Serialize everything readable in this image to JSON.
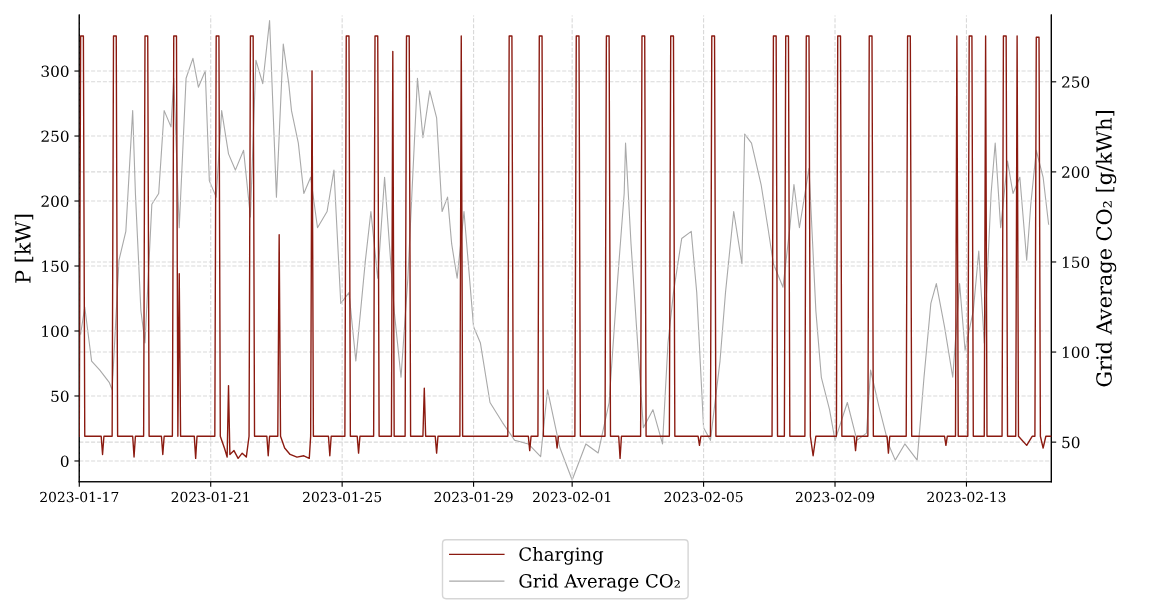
{
  "chart_data": {
    "type": "line",
    "ylabel": "P [kW]",
    "y2label": "Grid Average CO₂ [g/kWh]",
    "xlim": [
      "2023-01-17",
      "2023-02-15T14:00"
    ],
    "xticks": [
      "2023-01-17",
      "2023-01-21",
      "2023-01-25",
      "2023-01-29",
      "2023-02-01",
      "2023-02-05",
      "2023-02-09",
      "2023-02-13"
    ],
    "ylim": [
      -16,
      343
    ],
    "yticks": [
      0,
      50,
      100,
      150,
      200,
      250,
      300
    ],
    "y2lim": [
      28,
      287
    ],
    "y2ticks": [
      50,
      100,
      150,
      200,
      250
    ],
    "grid": true,
    "legend": "bottom",
    "line_style": "solid",
    "marker": "none",
    "series": [
      {
        "name": "Charging",
        "color": "#8b1a10",
        "x": [
          "2023-01-17T00:00",
          "2023-01-17T01:00",
          "2023-01-17T03:00",
          "2023-01-17T04:00",
          "2023-01-17T16:00",
          "2023-01-17T17:00",
          "2023-01-17T18:00",
          "2023-01-18T00:00",
          "2023-01-18T01:00",
          "2023-01-18T03:00",
          "2023-01-18T04:00",
          "2023-01-18T15:00",
          "2023-01-18T16:00",
          "2023-01-18T17:00",
          "2023-01-18T23:00",
          "2023-01-19T00:00",
          "2023-01-19T02:00",
          "2023-01-19T03:00",
          "2023-01-19T12:00",
          "2023-01-19T13:00",
          "2023-01-19T14:00",
          "2023-01-19T20:00",
          "2023-01-19T21:00",
          "2023-01-19T23:00",
          "2023-01-20T00:00",
          "2023-01-20T01:00",
          "2023-01-20T02:00",
          "2023-01-20T12:00",
          "2023-01-20T13:00",
          "2023-01-20T14:00",
          "2023-01-21T03:00",
          "2023-01-21T04:00",
          "2023-01-21T06:00",
          "2023-01-21T07:00",
          "2023-01-21T10:00",
          "2023-01-21T12:00",
          "2023-01-21T13:00",
          "2023-01-21T14:00",
          "2023-01-21T17:00",
          "2023-01-21T20:00",
          "2023-01-21T23:00",
          "2023-01-22T02:00",
          "2023-01-22T04:00",
          "2023-01-22T05:00",
          "2023-01-22T07:00",
          "2023-01-22T08:00",
          "2023-01-22T17:00",
          "2023-01-22T18:00",
          "2023-01-22T19:00",
          "2023-01-23T01:00",
          "2023-01-23T02:00",
          "2023-01-23T03:00",
          "2023-01-23T06:00",
          "2023-01-23T10:00",
          "2023-01-23T15:00",
          "2023-01-23T20:00",
          "2023-01-24T00:00",
          "2023-01-24T01:00",
          "2023-01-24T02:00",
          "2023-01-24T03:00",
          "2023-01-24T14:00",
          "2023-01-24T15:00",
          "2023-01-24T16:00",
          "2023-01-25T02:00",
          "2023-01-25T03:00",
          "2023-01-25T05:00",
          "2023-01-25T06:00",
          "2023-01-25T11:00",
          "2023-01-25T12:00",
          "2023-01-25T13:00",
          "2023-01-25T23:00",
          "2023-01-26T00:00",
          "2023-01-26T02:00",
          "2023-01-26T03:00",
          "2023-01-26T12:00",
          "2023-01-26T13:00",
          "2023-01-26T14:00",
          "2023-01-26T22:00",
          "2023-01-26T23:00",
          "2023-01-27T01:00",
          "2023-01-27T02:00",
          "2023-01-27T11:00",
          "2023-01-27T12:00",
          "2023-01-27T13:00",
          "2023-01-27T20:00",
          "2023-01-27T21:00",
          "2023-01-27T22:00",
          "2023-01-28T14:00",
          "2023-01-28T15:00",
          "2023-01-28T16:00",
          "2023-01-30T01:00",
          "2023-01-30T02:00",
          "2023-01-30T04:00",
          "2023-01-30T05:00",
          "2023-01-30T16:00",
          "2023-01-30T17:00",
          "2023-01-30T18:00",
          "2023-01-30T23:00",
          "2023-01-31T00:00",
          "2023-01-31T02:00",
          "2023-01-31T03:00",
          "2023-01-31T12:00",
          "2023-01-31T13:00",
          "2023-01-31T14:00",
          "2023-02-01T02:00",
          "2023-02-01T03:00",
          "2023-02-01T05:00",
          "2023-02-01T06:00",
          "2023-02-02T00:00",
          "2023-02-02T01:00",
          "2023-02-02T03:00",
          "2023-02-02T04:00",
          "2023-02-02T10:00",
          "2023-02-02T11:00",
          "2023-02-02T12:00",
          "2023-02-03T02:00",
          "2023-02-03T03:00",
          "2023-02-03T05:00",
          "2023-02-03T06:00",
          "2023-02-03T23:00",
          "2023-02-04T00:00",
          "2023-02-04T02:00",
          "2023-02-04T03:00",
          "2023-02-04T20:00",
          "2023-02-04T21:00",
          "2023-02-04T22:00",
          "2023-02-05T05:00",
          "2023-02-05T06:00",
          "2023-02-05T08:00",
          "2023-02-05T09:00",
          "2023-02-07T02:00",
          "2023-02-07T03:00",
          "2023-02-07T05:00",
          "2023-02-07T06:00",
          "2023-02-07T11:00",
          "2023-02-07T12:00",
          "2023-02-07T14:00",
          "2023-02-07T15:00",
          "2023-02-08T02:00",
          "2023-02-08T03:00",
          "2023-02-08T05:00",
          "2023-02-08T06:00",
          "2023-02-08T08:00",
          "2023-02-08T10:00",
          "2023-02-09T01:00",
          "2023-02-09T02:00",
          "2023-02-09T04:00",
          "2023-02-09T05:00",
          "2023-02-09T14:00",
          "2023-02-09T15:00",
          "2023-02-09T16:00",
          "2023-02-10T00:00",
          "2023-02-10T01:00",
          "2023-02-10T03:00",
          "2023-02-10T04:00",
          "2023-02-10T14:00",
          "2023-02-10T15:00",
          "2023-02-10T16:00",
          "2023-02-11T04:00",
          "2023-02-11T05:00",
          "2023-02-11T07:00",
          "2023-02-11T08:00",
          "2023-02-12T08:00",
          "2023-02-12T09:00",
          "2023-02-12T10:00",
          "2023-02-12T16:00",
          "2023-02-12T17:00",
          "2023-02-12T18:00",
          "2023-02-13T01:00",
          "2023-02-13T02:00",
          "2023-02-13T04:00",
          "2023-02-13T05:00",
          "2023-02-13T13:00",
          "2023-02-13T14:00",
          "2023-02-13T15:00",
          "2023-02-14T02:00",
          "2023-02-14T03:00",
          "2023-02-14T05:00",
          "2023-02-14T06:00",
          "2023-02-14T12:00",
          "2023-02-14T13:00",
          "2023-02-14T14:00",
          "2023-02-14T20:00",
          "2023-02-15T00:00",
          "2023-02-15T02:00",
          "2023-02-15T03:00",
          "2023-02-15T05:00",
          "2023-02-15T06:00",
          "2023-02-15T08:00",
          "2023-02-15T10:00",
          "2023-02-15T14:00"
        ],
        "values": [
          19,
          327,
          327,
          19,
          19,
          5,
          19,
          19,
          327,
          327,
          19,
          19,
          3,
          19,
          19,
          327,
          327,
          19,
          19,
          5,
          19,
          19,
          327,
          327,
          19,
          144,
          19,
          19,
          2,
          19,
          19,
          327,
          327,
          19,
          10,
          3,
          58,
          5,
          8,
          2,
          6,
          3,
          19,
          327,
          327,
          19,
          19,
          4,
          19,
          19,
          174,
          19,
          10,
          5,
          3,
          4,
          2,
          19,
          300,
          19,
          19,
          4,
          19,
          19,
          327,
          327,
          19,
          19,
          6,
          19,
          19,
          327,
          327,
          19,
          19,
          315,
          19,
          19,
          327,
          327,
          19,
          19,
          56,
          19,
          19,
          6,
          19,
          19,
          327,
          19,
          19,
          327,
          327,
          19,
          19,
          8,
          19,
          19,
          327,
          327,
          19,
          19,
          10,
          19,
          19,
          327,
          327,
          19,
          19,
          327,
          327,
          19,
          19,
          2,
          19,
          19,
          327,
          327,
          19,
          19,
          327,
          327,
          19,
          19,
          12,
          19,
          19,
          327,
          327,
          19,
          19,
          327,
          327,
          19,
          19,
          327,
          327,
          19,
          19,
          327,
          327,
          19,
          4,
          19,
          19,
          327,
          327,
          19,
          19,
          8,
          19,
          19,
          327,
          327,
          19,
          19,
          6,
          19,
          19,
          327,
          327,
          19,
          19,
          12,
          19,
          19,
          327,
          19,
          19,
          327,
          327,
          19,
          19,
          327,
          19,
          19,
          327,
          327,
          19,
          19,
          327,
          19,
          12,
          19,
          19,
          326,
          326,
          19,
          10,
          19,
          19
        ]
      },
      {
        "name": "Grid Average CO₂",
        "color": "#a9a9a9",
        "axis": "y2",
        "x": [
          "2023-01-17T01:00",
          "2023-01-17T04:00",
          "2023-01-17T09:00",
          "2023-01-17T15:00",
          "2023-01-17T22:00",
          "2023-01-18T00:00",
          "2023-01-18T05:00",
          "2023-01-18T10:00",
          "2023-01-18T15:00",
          "2023-01-18T17:00",
          "2023-01-18T21:00",
          "2023-01-19T00:00",
          "2023-01-19T05:00",
          "2023-01-19T10:00",
          "2023-01-19T14:00",
          "2023-01-19T19:00",
          "2023-01-19T21:00",
          "2023-01-20T01:00",
          "2023-01-20T06:00",
          "2023-01-20T11:00",
          "2023-01-20T15:00",
          "2023-01-20T20:00",
          "2023-01-20T23:00",
          "2023-01-21T04:00",
          "2023-01-21T08:00",
          "2023-01-21T13:00",
          "2023-01-21T18:00",
          "2023-01-22T00:00",
          "2023-01-22T05:00",
          "2023-01-22T09:00",
          "2023-01-22T14:00",
          "2023-01-22T19:00",
          "2023-01-23T00:00",
          "2023-01-23T05:00",
          "2023-01-23T09:00",
          "2023-01-23T11:00",
          "2023-01-23T16:00",
          "2023-01-23T20:00",
          "2023-01-24T01:00",
          "2023-01-24T06:00",
          "2023-01-24T13:00",
          "2023-01-24T18:00",
          "2023-01-24T23:00",
          "2023-01-25T05:00",
          "2023-01-25T10:00",
          "2023-01-25T17:00",
          "2023-01-25T21:00",
          "2023-01-26T02:00",
          "2023-01-26T07:00",
          "2023-01-26T14:00",
          "2023-01-26T19:00",
          "2023-01-27T00:00",
          "2023-01-27T07:00",
          "2023-01-27T11:00",
          "2023-01-27T16:00",
          "2023-01-27T21:00",
          "2023-01-28T01:00",
          "2023-01-28T05:00",
          "2023-01-28T08:00",
          "2023-01-28T12:00",
          "2023-01-28T17:00",
          "2023-01-29T00:00",
          "2023-01-29T05:00",
          "2023-01-29T12:00",
          "2023-01-29T21:00",
          "2023-01-30T06:00",
          "2023-01-30T16:00",
          "2023-01-31T01:00",
          "2023-01-31T06:00",
          "2023-01-31T15:00",
          "2023-02-01T00:00",
          "2023-02-01T10:00",
          "2023-02-01T19:00",
          "2023-02-02T03:00",
          "2023-02-02T09:00",
          "2023-02-02T14:00",
          "2023-02-02T15:00",
          "2023-02-02T19:00",
          "2023-02-02T23:00",
          "2023-02-03T04:00",
          "2023-02-03T11:00",
          "2023-02-03T18:00",
          "2023-02-03T22:00",
          "2023-02-04T02:00",
          "2023-02-04T08:00",
          "2023-02-04T15:00",
          "2023-02-04T19:00",
          "2023-02-05T00:00",
          "2023-02-05T05:00",
          "2023-02-05T12:00",
          "2023-02-05T16:00",
          "2023-02-05T22:00",
          "2023-02-06T04:00",
          "2023-02-06T06:00",
          "2023-02-06T11:00",
          "2023-02-06T18:00",
          "2023-02-06T23:00",
          "2023-02-07T03:00",
          "2023-02-07T10:00",
          "2023-02-07T15:00",
          "2023-02-07T18:00",
          "2023-02-07T22:00",
          "2023-02-08T05:00",
          "2023-02-08T10:00",
          "2023-02-08T14:00",
          "2023-02-08T20:00",
          "2023-02-09T00:00",
          "2023-02-09T09:00",
          "2023-02-09T16:00",
          "2023-02-09T23:00",
          "2023-02-10T02:00",
          "2023-02-10T08:00",
          "2023-02-10T15:00",
          "2023-02-10T20:00",
          "2023-02-11T03:00",
          "2023-02-11T12:00",
          "2023-02-11T17:00",
          "2023-02-11T22:00",
          "2023-02-12T02:00",
          "2023-02-12T08:00",
          "2023-02-12T14:00",
          "2023-02-12T19:00",
          "2023-02-12T23:00",
          "2023-02-13T05:00",
          "2023-02-13T09:00",
          "2023-02-13T13:00",
          "2023-02-13T18:00",
          "2023-02-13T21:00",
          "2023-02-14T01:00",
          "2023-02-14T06:00",
          "2023-02-14T10:00",
          "2023-02-14T15:00",
          "2023-02-14T20:00",
          "2023-02-14T23:00",
          "2023-02-15T03:00",
          "2023-02-15T08:00",
          "2023-02-15T12:00"
        ],
        "values": [
          110,
          125,
          95,
          90,
          83,
          79,
          151,
          167,
          234,
          188,
          123,
          105,
          182,
          188,
          234,
          225,
          252,
          169,
          252,
          263,
          247,
          256,
          195,
          186,
          234,
          210,
          201,
          212,
          175,
          262,
          249,
          284,
          186,
          271,
          249,
          234,
          216,
          188,
          197,
          169,
          178,
          201,
          127,
          133,
          95,
          151,
          178,
          141,
          197,
          123,
          86,
          141,
          252,
          219,
          245,
          230,
          178,
          186,
          160,
          141,
          178,
          114,
          105,
          72,
          61,
          51,
          49,
          42,
          79,
          47,
          29,
          49,
          44,
          72,
          138,
          188,
          216,
          160,
          114,
          58,
          68,
          49,
          105,
          133,
          163,
          167,
          133,
          58,
          51,
          95,
          133,
          178,
          149,
          221,
          216,
          193,
          169,
          149,
          136,
          169,
          193,
          169,
          202,
          123,
          86,
          68,
          51,
          72,
          51,
          55,
          90,
          70,
          49,
          40,
          49,
          40,
          86,
          127,
          138,
          114,
          86,
          138,
          101,
          123,
          156,
          105,
          188,
          216,
          169,
          206,
          188,
          197,
          151,
          182,
          212,
          197,
          171
        ]
      }
    ]
  }
}
